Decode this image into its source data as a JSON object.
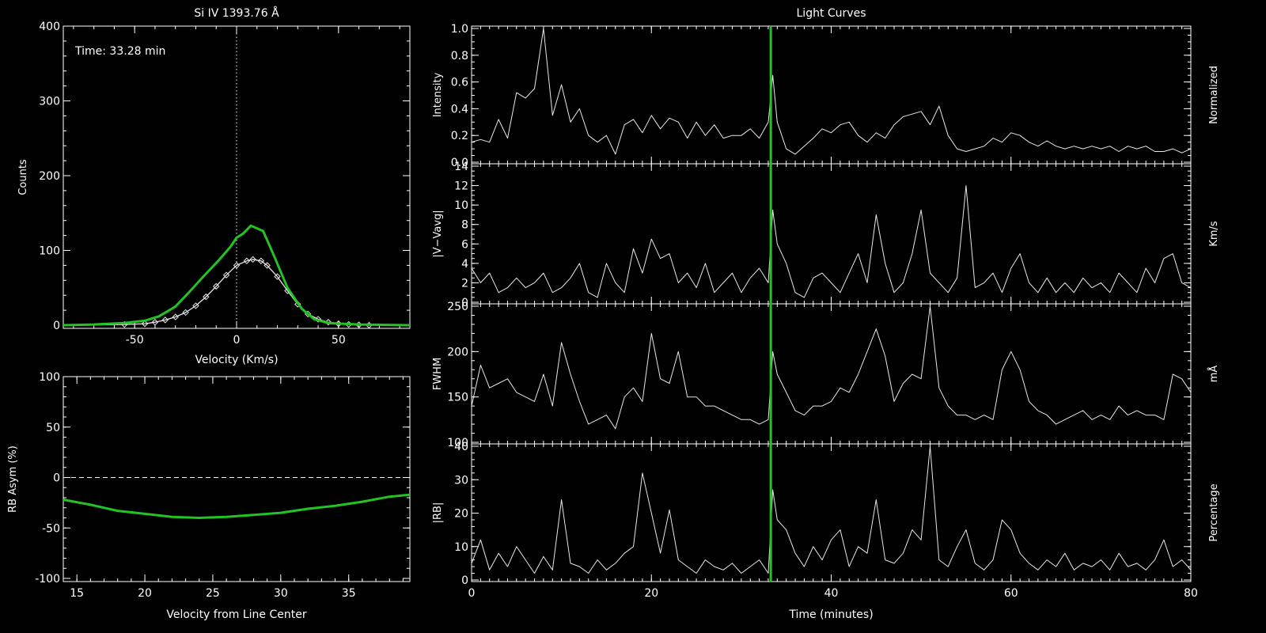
{
  "colors": {
    "background": "#000000",
    "axes": "#ffffff",
    "accent": "#22c322",
    "fit": "#e8e8e8"
  },
  "chart_data": [
    {
      "id": "spectrum",
      "type": "line",
      "title": "Si IV 1393.76 Å",
      "xlabel": "Velocity (Km/s)",
      "ylabel": "Counts",
      "xlim": [
        -85,
        85
      ],
      "ylim": [
        0,
        400
      ],
      "xticks": [
        -50,
        0,
        50
      ],
      "yticks": [
        0,
        100,
        200,
        300,
        400
      ],
      "annotation": "Time: 33.28 min",
      "reference_line": {
        "x": 0,
        "style": "dotted"
      },
      "series": [
        {
          "color": "#22c322",
          "x": [
            -85,
            -70,
            -55,
            -45,
            -38,
            -30,
            -23,
            -16,
            -9,
            -3,
            0,
            3,
            7,
            13,
            18,
            25,
            32,
            38,
            45,
            60,
            85
          ],
          "values": [
            0,
            1,
            3,
            6,
            12,
            25,
            45,
            66,
            86,
            105,
            117,
            122,
            133,
            126,
            95,
            50,
            22,
            8,
            3,
            1,
            0
          ]
        },
        {
          "color": "#e8e8e8",
          "markers": "diamond",
          "x": [
            -85,
            -55,
            -45,
            -40,
            -35,
            -30,
            -25,
            -20,
            -15,
            -10,
            -5,
            0,
            5,
            8,
            12,
            15,
            20,
            25,
            30,
            35,
            40,
            45,
            50,
            55,
            60,
            65,
            75,
            85
          ],
          "values": [
            0,
            1,
            2,
            4,
            7,
            11,
            17,
            26,
            38,
            52,
            67,
            80,
            86,
            88,
            86,
            80,
            65,
            46,
            28,
            15,
            8,
            4,
            2,
            1,
            0.5,
            0,
            0,
            0
          ]
        }
      ]
    },
    {
      "id": "asymmetry",
      "type": "line",
      "xlabel": "Velocity from Line Center",
      "ylabel": "RB Asym (%)",
      "xlim": [
        14,
        39.5
      ],
      "ylim": [
        -100,
        100
      ],
      "xticks": [
        15,
        20,
        25,
        30,
        35
      ],
      "yticks": [
        -100,
        -50,
        0,
        50,
        100
      ],
      "reference_line": {
        "y": 0,
        "style": "dashed"
      },
      "series": [
        {
          "color": "#22c322",
          "x": [
            14,
            16,
            18,
            20,
            22,
            24,
            26,
            28,
            30,
            32,
            34,
            36,
            38,
            39.5
          ],
          "values": [
            -22,
            -27,
            -33,
            -36,
            -39,
            -40,
            -39,
            -37,
            -35,
            -31,
            -28,
            -24,
            -19,
            -17
          ]
        }
      ]
    },
    {
      "id": "light-curves",
      "type": "line",
      "title": "Light Curves",
      "xlabel": "Time (minutes)",
      "xlim": [
        0,
        80
      ],
      "xticks": [
        0,
        20,
        40,
        60,
        80
      ],
      "cursor_x": 33.28,
      "panels": [
        {
          "ylabel": "Intensity",
          "right_label": "Normalized",
          "ylim": [
            0,
            1.0
          ],
          "yticks": [
            "0.0",
            "0.2",
            "0.4",
            "0.6",
            "0.8",
            "1.0"
          ],
          "x": [
            0,
            1,
            2,
            3,
            4,
            5,
            6,
            7,
            8,
            9,
            10,
            11,
            12,
            13,
            14,
            15,
            16,
            17,
            18,
            19,
            20,
            21,
            22,
            23,
            24,
            25,
            26,
            27,
            28,
            29,
            30,
            31,
            32,
            33,
            33.5,
            34,
            35,
            36,
            37,
            38,
            39,
            40,
            41,
            42,
            43,
            44,
            45,
            46,
            47,
            48,
            49,
            50,
            51,
            52,
            53,
            54,
            55,
            56,
            57,
            58,
            59,
            60,
            61,
            62,
            63,
            64,
            65,
            66,
            67,
            68,
            69,
            70,
            71,
            72,
            73,
            74,
            75,
            76,
            77,
            78,
            79,
            80
          ],
          "values": [
            0.15,
            0.17,
            0.15,
            0.32,
            0.18,
            0.52,
            0.48,
            0.55,
            1.0,
            0.35,
            0.58,
            0.3,
            0.4,
            0.2,
            0.15,
            0.2,
            0.06,
            0.28,
            0.32,
            0.22,
            0.35,
            0.25,
            0.33,
            0.3,
            0.18,
            0.3,
            0.2,
            0.28,
            0.18,
            0.2,
            0.2,
            0.25,
            0.18,
            0.3,
            0.65,
            0.3,
            0.1,
            0.06,
            0.12,
            0.18,
            0.25,
            0.22,
            0.28,
            0.3,
            0.2,
            0.15,
            0.22,
            0.18,
            0.28,
            0.34,
            0.36,
            0.38,
            0.28,
            0.42,
            0.2,
            0.1,
            0.08,
            0.1,
            0.12,
            0.18,
            0.15,
            0.22,
            0.2,
            0.15,
            0.12,
            0.16,
            0.12,
            0.1,
            0.12,
            0.1,
            0.12,
            0.1,
            0.12,
            0.08,
            0.12,
            0.1,
            0.12,
            0.08,
            0.08,
            0.1,
            0.07,
            0.1
          ]
        },
        {
          "ylabel": "|V−Vavg|",
          "right_label": "Km/s",
          "ylim": [
            0,
            14
          ],
          "yticks": [
            "0",
            "2",
            "4",
            "6",
            "8",
            "10",
            "12",
            "14"
          ],
          "x": [
            0,
            1,
            2,
            3,
            4,
            5,
            6,
            7,
            8,
            9,
            10,
            11,
            12,
            13,
            14,
            15,
            16,
            17,
            18,
            19,
            20,
            21,
            22,
            23,
            24,
            25,
            26,
            27,
            28,
            29,
            30,
            31,
            32,
            33,
            33.5,
            34,
            35,
            36,
            37,
            38,
            39,
            40,
            41,
            42,
            43,
            44,
            45,
            46,
            47,
            48,
            49,
            50,
            51,
            52,
            53,
            54,
            55,
            56,
            57,
            58,
            59,
            60,
            61,
            62,
            63,
            64,
            65,
            66,
            67,
            68,
            69,
            70,
            71,
            72,
            73,
            74,
            75,
            76,
            77,
            78,
            79,
            80
          ],
          "values": [
            3.5,
            2.0,
            3.0,
            1.0,
            1.5,
            2.5,
            1.5,
            2.0,
            3.0,
            1.0,
            1.5,
            2.5,
            4.0,
            1.0,
            0.5,
            4.0,
            2.0,
            1.0,
            5.5,
            3.0,
            6.5,
            4.5,
            5.0,
            2.0,
            3.0,
            1.5,
            4.0,
            1.0,
            2.0,
            3.0,
            1.0,
            2.5,
            3.5,
            2.0,
            9.5,
            6.0,
            4.0,
            1.0,
            0.5,
            2.5,
            3.0,
            2.0,
            1.0,
            3.0,
            5.0,
            2.0,
            9.0,
            4.0,
            1.0,
            2.0,
            5.0,
            9.5,
            3.0,
            2.0,
            1.0,
            2.5,
            12.0,
            1.5,
            2.0,
            3.0,
            1.0,
            3.5,
            5.0,
            2.0,
            1.0,
            2.5,
            1.0,
            2.0,
            1.0,
            2.5,
            1.5,
            2.0,
            1.0,
            3.0,
            2.0,
            1.0,
            3.5,
            2.0,
            4.5,
            5.0,
            2.0,
            1.5
          ]
        },
        {
          "ylabel": "FWHM",
          "right_label": "mÅ",
          "ylim": [
            100,
            250
          ],
          "yticks": [
            "100",
            "150",
            "200",
            "250"
          ],
          "x": [
            0,
            1,
            2,
            3,
            4,
            5,
            6,
            7,
            8,
            9,
            10,
            11,
            12,
            13,
            14,
            15,
            16,
            17,
            18,
            19,
            20,
            21,
            22,
            23,
            24,
            25,
            26,
            27,
            28,
            29,
            30,
            31,
            32,
            33,
            33.5,
            34,
            35,
            36,
            37,
            38,
            39,
            40,
            41,
            42,
            43,
            44,
            45,
            46,
            47,
            48,
            49,
            50,
            51,
            52,
            53,
            54,
            55,
            56,
            57,
            58,
            59,
            60,
            61,
            62,
            63,
            64,
            65,
            66,
            67,
            68,
            69,
            70,
            71,
            72,
            73,
            74,
            75,
            76,
            77,
            78,
            79,
            80
          ],
          "values": [
            140,
            185,
            160,
            165,
            170,
            155,
            150,
            145,
            175,
            140,
            210,
            175,
            145,
            120,
            125,
            130,
            115,
            150,
            160,
            145,
            220,
            170,
            165,
            200,
            150,
            150,
            140,
            140,
            135,
            130,
            125,
            125,
            120,
            125,
            200,
            175,
            155,
            135,
            130,
            140,
            140,
            145,
            160,
            155,
            175,
            200,
            225,
            195,
            145,
            165,
            175,
            170,
            250,
            160,
            140,
            130,
            130,
            125,
            130,
            125,
            180,
            200,
            180,
            145,
            135,
            130,
            120,
            125,
            130,
            135,
            125,
            130,
            125,
            140,
            130,
            135,
            130,
            130,
            125,
            175,
            170,
            155
          ]
        },
        {
          "ylabel": "|RB|",
          "right_label": "Percentage",
          "ylim": [
            0,
            40
          ],
          "yticks": [
            "0",
            "10",
            "20",
            "30",
            "40"
          ],
          "x": [
            0,
            1,
            2,
            3,
            4,
            5,
            6,
            7,
            8,
            9,
            10,
            11,
            12,
            13,
            14,
            15,
            16,
            17,
            18,
            19,
            20,
            21,
            22,
            23,
            24,
            25,
            26,
            27,
            28,
            29,
            30,
            31,
            32,
            33,
            33.5,
            34,
            35,
            36,
            37,
            38,
            39,
            40,
            41,
            42,
            43,
            44,
            45,
            46,
            47,
            48,
            49,
            50,
            51,
            52,
            53,
            54,
            55,
            56,
            57,
            58,
            59,
            60,
            61,
            62,
            63,
            64,
            65,
            66,
            67,
            68,
            69,
            70,
            71,
            72,
            73,
            74,
            75,
            76,
            77,
            78,
            79,
            80
          ],
          "values": [
            5,
            12,
            3,
            8,
            4,
            10,
            6,
            2,
            7,
            3,
            24,
            5,
            4,
            2,
            6,
            3,
            5,
            8,
            10,
            32,
            20,
            8,
            21,
            6,
            4,
            2,
            6,
            4,
            3,
            5,
            2,
            4,
            6,
            2,
            27,
            18,
            15,
            8,
            4,
            10,
            6,
            12,
            15,
            4,
            10,
            8,
            24,
            6,
            5,
            8,
            15,
            12,
            40,
            6,
            4,
            10,
            15,
            5,
            3,
            6,
            18,
            15,
            8,
            5,
            3,
            6,
            4,
            8,
            3,
            5,
            4,
            6,
            3,
            8,
            4,
            5,
            3,
            6,
            12,
            4,
            6,
            3
          ]
        }
      ]
    }
  ]
}
